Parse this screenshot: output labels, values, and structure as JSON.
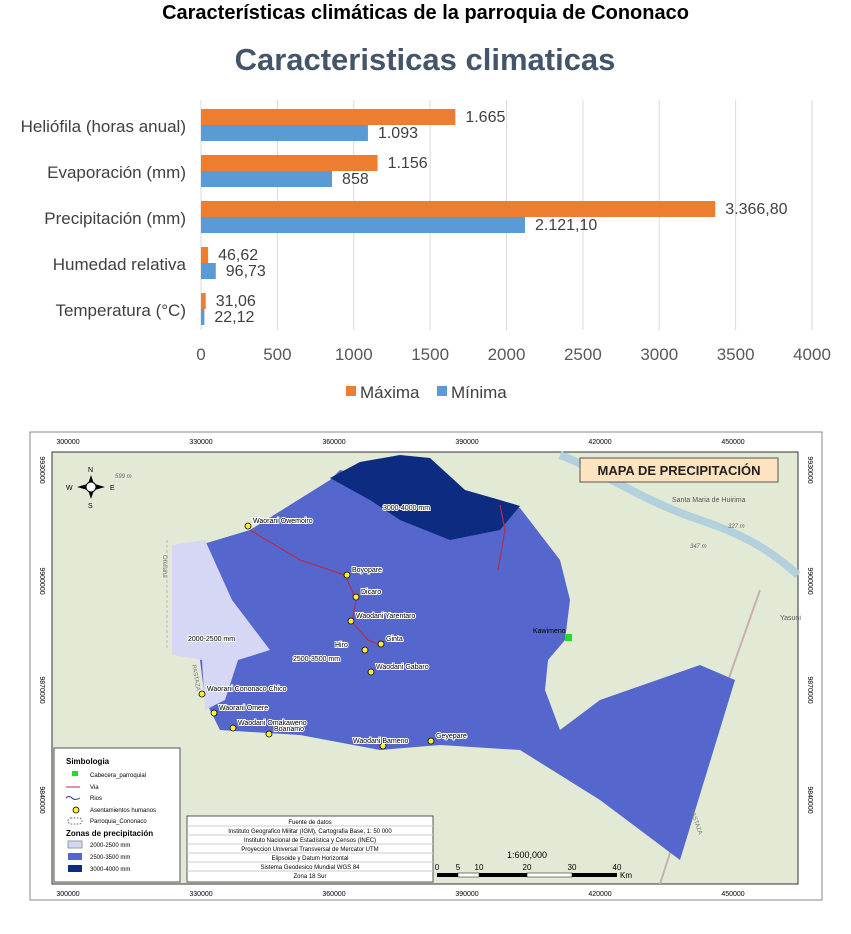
{
  "document_title": "Características climáticas de la parroquia de Cononaco",
  "chart_data": {
    "type": "bar",
    "orientation": "horizontal",
    "title": "Caracteristicas climaticas",
    "categories": [
      "Heliófila (horas anual)",
      "Evaporación (mm)",
      "Precipitación (mm)",
      "Humedad relativa",
      "Temperatura (°C)"
    ],
    "series": [
      {
        "name": "Máxima",
        "color": "#ED7D31",
        "values": [
          1665,
          1156,
          3366.8,
          46.62,
          31.06
        ],
        "labels": [
          "1.665",
          "1.156",
          "3.366,80",
          "46,62",
          "31,06"
        ]
      },
      {
        "name": "Mínima",
        "color": "#5B9BD5",
        "values": [
          1093,
          858,
          2121.1,
          96.73,
          22.12
        ],
        "labels": [
          "1.093",
          "858",
          "2.121,10",
          "96,73",
          "22,12"
        ]
      }
    ],
    "xlim": [
      0,
      4000
    ],
    "xticks": [
      "0",
      "500",
      "1000",
      "1500",
      "2000",
      "2500",
      "3000",
      "3500",
      "4000"
    ],
    "grid": true,
    "legend": "bottom"
  },
  "map": {
    "title": "MAPA DE PRECIPITACIÓN",
    "x_ticks": [
      "300000",
      "330000",
      "360000",
      "390000",
      "420000",
      "450000"
    ],
    "y_ticks": [
      "9930000",
      "9900000",
      "9870000",
      "9840000"
    ],
    "compass": [
      "N",
      "S",
      "E",
      "W"
    ],
    "zones": [
      {
        "label": "2000-2500 mm",
        "color": "#d6d6f5"
      },
      {
        "label": "2500-3500 mm",
        "color": "#5566cc"
      },
      {
        "label": "3000-4000 mm",
        "color": "#0d2b80"
      }
    ],
    "settlements": [
      "Waorani Owemoiro",
      "Boyopare",
      "Dicaro",
      "Waodani Yarentaro",
      "Hiro",
      "Ginta",
      "Waodani Gabaro",
      "Waorani Cononaco Chico",
      "Waorani Omere",
      "Waodani Omakaweno",
      "Boanamo",
      "Waodani Bameno",
      "Geyepare"
    ],
    "cabecera": "Kawimeno",
    "place_labels": [
      "Santa Maria de Huirima",
      "327 m",
      "347 m",
      "599 m",
      "Yasuni",
      "Orellana",
      "PASTAZA",
      "PASTAZA"
    ],
    "legend": {
      "title": "Simbologia",
      "items": [
        "Cabecera_parroquial",
        "Via",
        "Rios",
        "Asentamientos humanos",
        "Parroquia_Cononaco"
      ],
      "zones_title": "Zonas de precipitación"
    },
    "sources": [
      "Fuente de datos",
      "Instituto Geografico Militar (IGM), Cartografia Base, 1: 50 000",
      "Instituto Nacional de Estadística y Censos (INEC)",
      "Proyeccion Universal Transversal de Mercator UTM",
      "Elipsoide y Datum Horizontal",
      "Sistema Geodesico Mundial WGS 84",
      "Zona 18 Sur"
    ],
    "scale": {
      "ratio": "1:600,000",
      "ticks": [
        "0",
        "5",
        "10",
        "20",
        "30",
        "40"
      ],
      "unit": "Km"
    }
  }
}
